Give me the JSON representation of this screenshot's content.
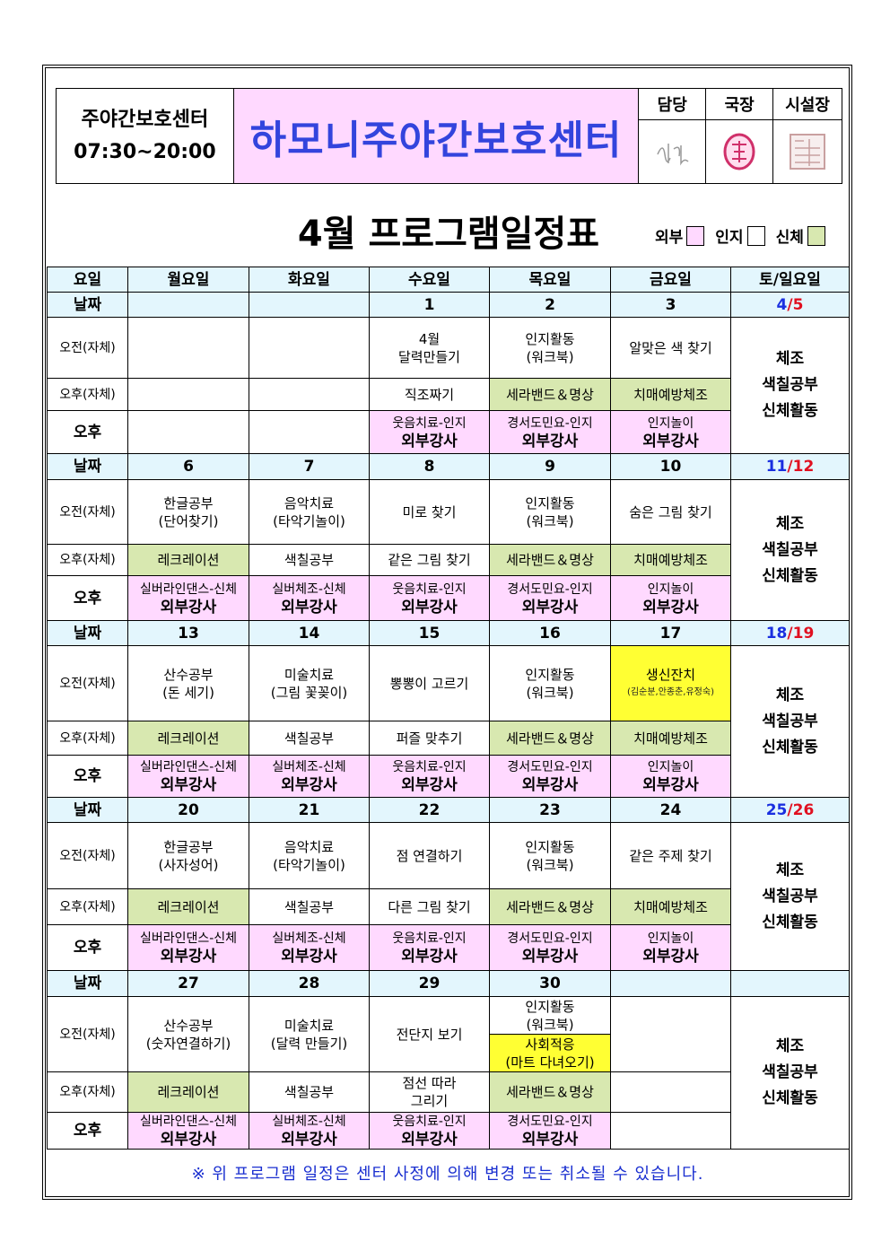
{
  "header": {
    "center_label": "주야간보호센터",
    "hours": "07:30~20:00",
    "center_name": "하모니주야간보호센터",
    "approvals": [
      {
        "label": "담당",
        "sign": "signature"
      },
      {
        "label": "국장",
        "sign": "red-seal"
      },
      {
        "label": "시설장",
        "sign": "square-seal"
      }
    ]
  },
  "title": "4월 프로그램일정표",
  "legend": [
    {
      "label": "외부",
      "color": "#ffd9ff"
    },
    {
      "label": "인지",
      "color": "#ffffff"
    },
    {
      "label": "신체",
      "color": "#d8e8b0"
    }
  ],
  "colors": {
    "header": "#e3f6fd",
    "external": "#ffd9ff",
    "physical": "#d8e8b0",
    "highlight": "#ffff33",
    "title_blue": "#3344dd"
  },
  "columns": [
    "요일",
    "월요일",
    "화요일",
    "수요일",
    "목요일",
    "금요일",
    "토/일요일"
  ],
  "row_labels": {
    "date": "날짜",
    "am": "오전(자체)",
    "pm_self": "오후(자체)",
    "pm": "오후"
  },
  "weekend_text": [
    "체조",
    "색칠공부",
    "신체활동"
  ],
  "weeks": [
    {
      "dates": [
        "",
        "",
        "1",
        "2",
        "3"
      ],
      "weekend": {
        "sat": "4",
        "sun": "5"
      },
      "am": [
        {
          "l1": ""
        },
        {
          "l1": ""
        },
        {
          "l1": "4월",
          "l2": "달력만들기"
        },
        {
          "l1": "인지활동",
          "l2": "(워크북)"
        },
        {
          "l1": "알맞은 색 찾기"
        }
      ],
      "pm_self": [
        {
          "l1": ""
        },
        {
          "l1": ""
        },
        {
          "l1": "직조짜기"
        },
        {
          "l1": "세라밴드＆명상",
          "bg": "gr"
        },
        {
          "l1": "치매예방체조",
          "bg": "gr"
        }
      ],
      "pm": [
        {
          "sub": ""
        },
        {
          "sub": ""
        },
        {
          "sub": "웃음치료-인지",
          "main": "외부강사"
        },
        {
          "sub": "경서도민요-인지",
          "main": "외부강사"
        },
        {
          "sub": "인지놀이",
          "main": "외부강사"
        }
      ]
    },
    {
      "dates": [
        "6",
        "7",
        "8",
        "9",
        "10"
      ],
      "weekend": {
        "sat": "11",
        "sun": "12"
      },
      "am": [
        {
          "l1": "한글공부",
          "l2": "(단어찾기)"
        },
        {
          "l1": "음악치료",
          "l2": "(타악기놀이)"
        },
        {
          "l1": "미로 찾기"
        },
        {
          "l1": "인지활동",
          "l2": "(워크북)"
        },
        {
          "l1": "숨은 그림 찾기"
        }
      ],
      "pm_self": [
        {
          "l1": "레크레이션",
          "bg": "gr"
        },
        {
          "l1": "색칠공부"
        },
        {
          "l1": "같은 그림 찾기"
        },
        {
          "l1": "세라밴드＆명상",
          "bg": "gr"
        },
        {
          "l1": "치매예방체조",
          "bg": "gr"
        }
      ],
      "pm": [
        {
          "sub": "실버라인댄스-신체",
          "main": "외부강사"
        },
        {
          "sub": "실버체조-신체",
          "main": "외부강사"
        },
        {
          "sub": "웃음치료-인지",
          "main": "외부강사"
        },
        {
          "sub": "경서도민요-인지",
          "main": "외부강사"
        },
        {
          "sub": "인지놀이",
          "main": "외부강사"
        }
      ]
    },
    {
      "dates": [
        "13",
        "14",
        "15",
        "16",
        "17"
      ],
      "weekend": {
        "sat": "18",
        "sun": "19"
      },
      "am": [
        {
          "l1": "산수공부",
          "l2": "(돈 세기)"
        },
        {
          "l1": "미술치료",
          "l2": "(그림 꽃꽂이)"
        },
        {
          "l1": "뽕뽕이 고르기"
        },
        {
          "l1": "인지활동",
          "l2": "(워크북)"
        },
        {
          "l1": "생신잔치",
          "note": "(김순분,안종춘,유정숙)",
          "bg": "ye"
        }
      ],
      "pm_self": [
        {
          "l1": "레크레이션",
          "bg": "gr"
        },
        {
          "l1": "색칠공부"
        },
        {
          "l1": "퍼즐 맞추기"
        },
        {
          "l1": "세라밴드＆명상",
          "bg": "gr"
        },
        {
          "l1": "치매예방체조",
          "bg": "gr"
        }
      ],
      "pm": [
        {
          "sub": "실버라인댄스-신체",
          "main": "외부강사"
        },
        {
          "sub": "실버체조-신체",
          "main": "외부강사"
        },
        {
          "sub": "웃음치료-인지",
          "main": "외부강사"
        },
        {
          "sub": "경서도민요-인지",
          "main": "외부강사"
        },
        {
          "sub": "인지놀이",
          "main": "외부강사"
        }
      ]
    },
    {
      "dates": [
        "20",
        "21",
        "22",
        "23",
        "24"
      ],
      "weekend": {
        "sat": "25",
        "sun": "26"
      },
      "am": [
        {
          "l1": "한글공부",
          "l2": "(사자성어)"
        },
        {
          "l1": "음악치료",
          "l2": "(타악기놀이)"
        },
        {
          "l1": "점 연결하기"
        },
        {
          "l1": "인지활동",
          "l2": "(워크북)"
        },
        {
          "l1": "같은 주제 찾기"
        }
      ],
      "pm_self": [
        {
          "l1": "레크레이션",
          "bg": "gr"
        },
        {
          "l1": "색칠공부"
        },
        {
          "l1": "다른 그림 찾기"
        },
        {
          "l1": "세라밴드＆명상",
          "bg": "gr"
        },
        {
          "l1": "치매예방체조",
          "bg": "gr"
        }
      ],
      "pm": [
        {
          "sub": "실버라인댄스-신체",
          "main": "외부강사"
        },
        {
          "sub": "실버체조-신체",
          "main": "외부강사"
        },
        {
          "sub": "웃음치료-인지",
          "main": "외부강사"
        },
        {
          "sub": "경서도민요-인지",
          "main": "외부강사"
        },
        {
          "sub": "인지놀이",
          "main": "외부강사"
        }
      ]
    },
    {
      "dates": [
        "27",
        "28",
        "29",
        "30",
        ""
      ],
      "weekend": {
        "sat": "",
        "sun": ""
      },
      "am": [
        {
          "l1": "산수공부",
          "l2": "(숫자연결하기)"
        },
        {
          "l1": "미술치료",
          "l2": "(달력 만들기)"
        },
        {
          "l1": "전단지 보기"
        },
        {
          "l1": "인지활동",
          "l2": "(워크북)",
          "extra1": "사회적응",
          "extra2": "(마트 다녀오기)"
        },
        {
          "l1": ""
        }
      ],
      "pm_self": [
        {
          "l1": "레크레이션",
          "bg": "gr"
        },
        {
          "l1": "색칠공부"
        },
        {
          "l1": "점선 따라",
          "l2": "그리기"
        },
        {
          "l1": "세라밴드＆명상",
          "bg": "gr"
        },
        {
          "l1": ""
        }
      ],
      "pm": [
        {
          "sub": "실버라인댄스-신체",
          "main": "외부강사"
        },
        {
          "sub": "실버체조-신체",
          "main": "외부강사"
        },
        {
          "sub": "웃음치료-인지",
          "main": "외부강사"
        },
        {
          "sub": "경서도민요-인지",
          "main": "외부강사"
        },
        {
          "sub": ""
        }
      ]
    }
  ],
  "footer": "※ 위 프로그램 일정은 센터 사정에 의해 변경 또는 취소될 수 있습니다."
}
